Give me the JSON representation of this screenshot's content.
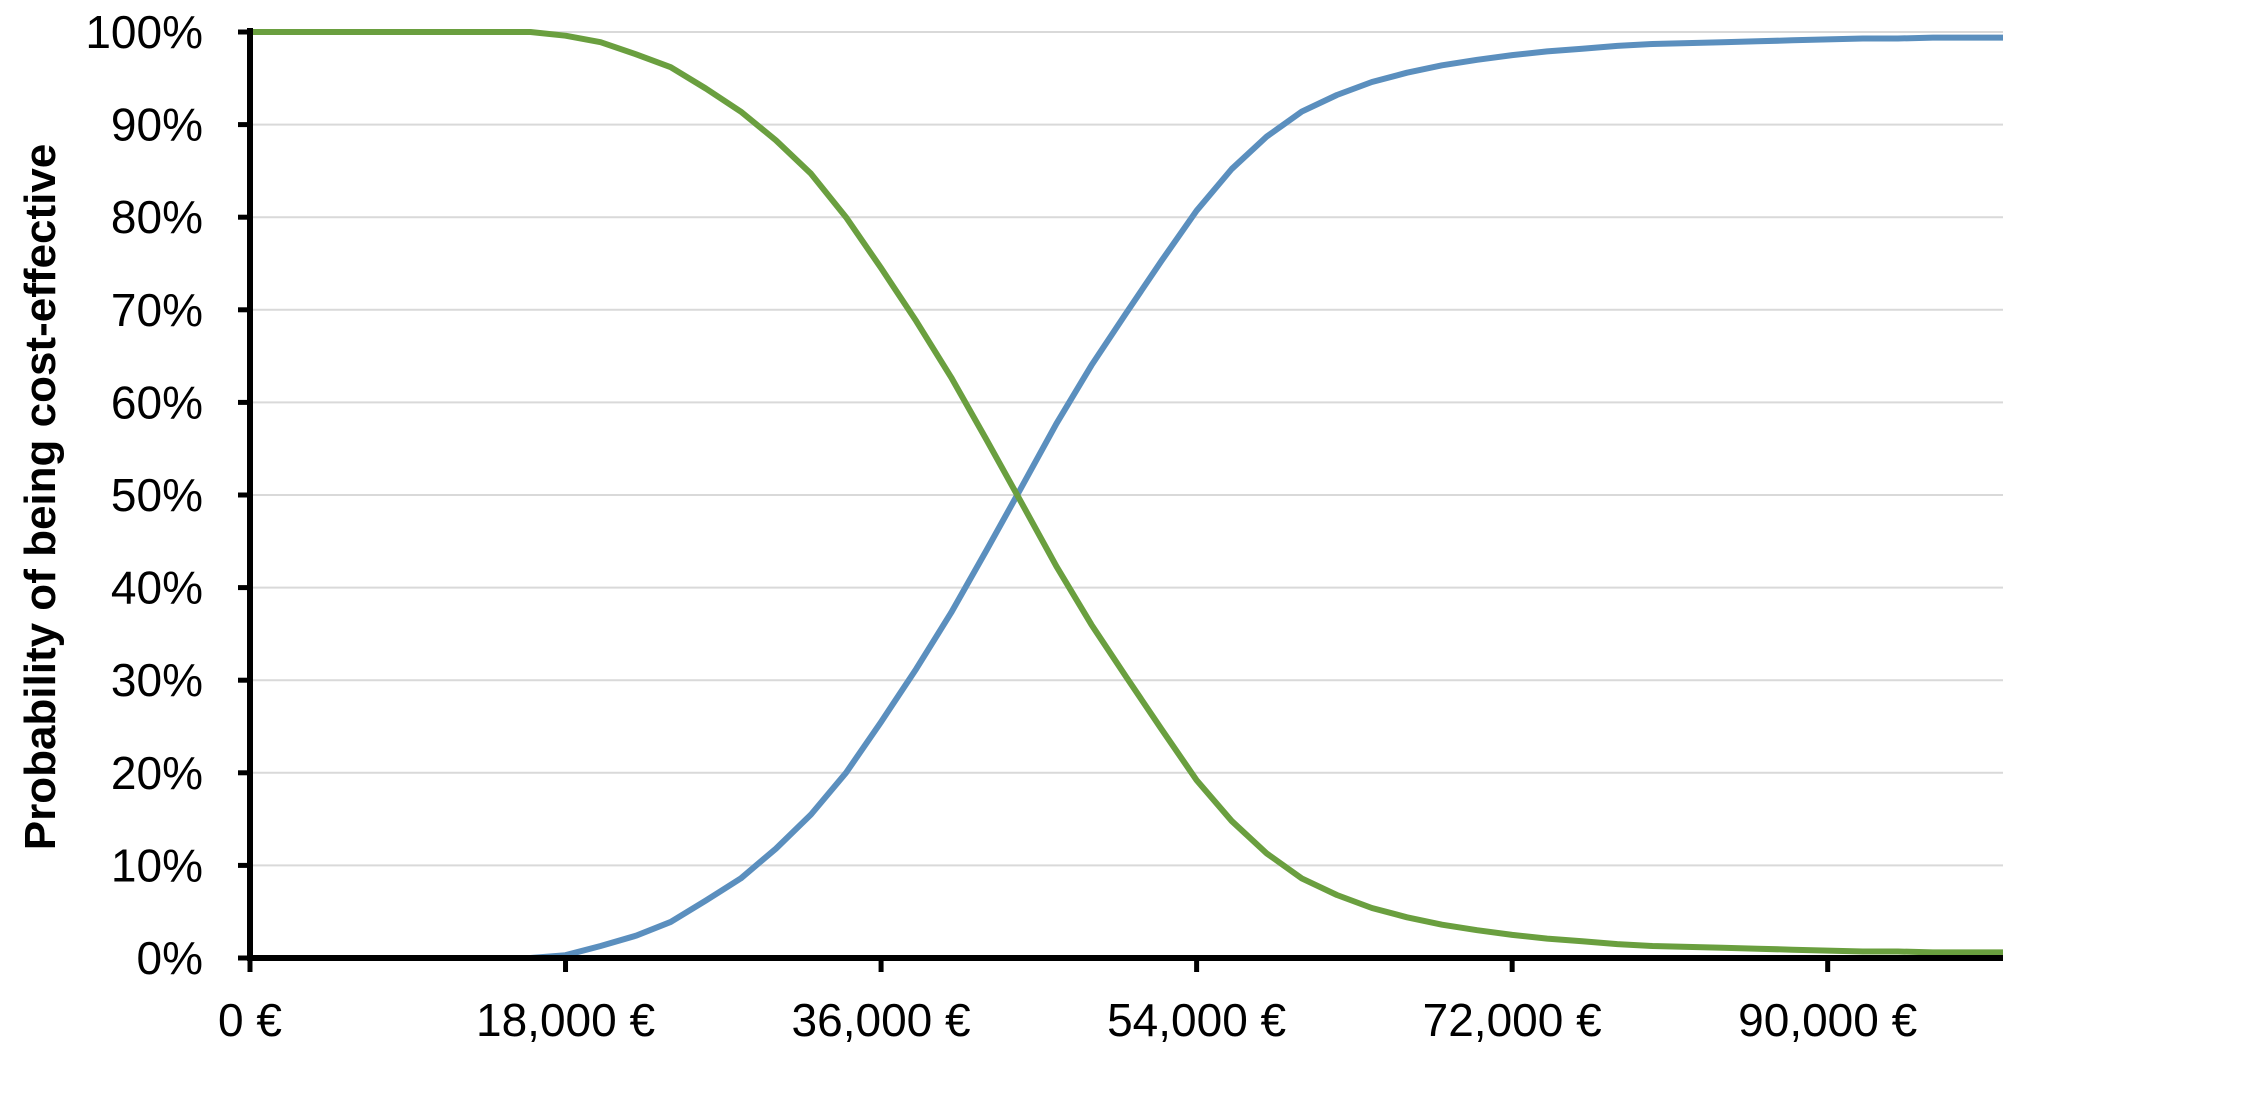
{
  "chart_data": {
    "type": "line",
    "title": "",
    "xlabel": "",
    "ylabel": "Probability of being cost-effective",
    "xlim": [
      0,
      100000
    ],
    "ylim": [
      0,
      100
    ],
    "x_ticks": [
      0,
      18000,
      36000,
      54000,
      72000,
      90000
    ],
    "x_tick_labels": [
      "0 €",
      "18,000 €",
      "36,000 €",
      "54,000 €",
      "72,000 €",
      "90,000 €"
    ],
    "y_ticks": [
      0,
      10,
      20,
      30,
      40,
      50,
      60,
      70,
      80,
      90,
      100
    ],
    "y_tick_labels": [
      "0%",
      "10%",
      "20%",
      "30%",
      "40%",
      "50%",
      "60%",
      "70%",
      "80%",
      "90%",
      "100%"
    ],
    "grid": "horizontal",
    "legend": "none",
    "x": [
      0,
      2000,
      4000,
      6000,
      8000,
      10000,
      12000,
      14000,
      16000,
      18000,
      20000,
      22000,
      24000,
      26000,
      28000,
      30000,
      32000,
      34000,
      36000,
      38000,
      40000,
      42000,
      44000,
      46000,
      48000,
      50000,
      52000,
      54000,
      56000,
      58000,
      60000,
      62000,
      64000,
      66000,
      68000,
      70000,
      72000,
      74000,
      76000,
      78000,
      80000,
      82000,
      84000,
      86000,
      88000,
      90000,
      92000,
      94000,
      96000,
      98000,
      100000
    ],
    "series": [
      {
        "color": "#5b8fbe",
        "values": [
          0,
          0,
          0,
          0,
          0,
          0,
          0,
          0,
          0,
          0.3,
          1.3,
          2.4,
          3.9,
          6.2,
          8.6,
          11.8,
          15.5,
          20,
          25.5,
          31.2,
          37.3,
          44,
          50.8,
          57.7,
          64,
          69.7,
          75.3,
          80.7,
          85.2,
          88.7,
          91.4,
          93.2,
          94.6,
          95.6,
          96.4,
          97,
          97.5,
          97.9,
          98.2,
          98.5,
          98.7,
          98.8,
          98.9,
          99,
          99.1,
          99.2,
          99.3,
          99.3,
          99.4,
          99.4,
          99.4
        ]
      },
      {
        "color": "#6a9f3f",
        "values": [
          100,
          100,
          100,
          100,
          100,
          100,
          100,
          100,
          100,
          99.6,
          98.9,
          97.6,
          96.2,
          93.9,
          91.4,
          88.3,
          84.7,
          80,
          74.5,
          68.8,
          62.7,
          56,
          49.2,
          42.3,
          36,
          30.3,
          24.7,
          19.2,
          14.8,
          11.3,
          8.6,
          6.8,
          5.4,
          4.4,
          3.6,
          3,
          2.5,
          2.1,
          1.8,
          1.5,
          1.3,
          1.2,
          1.1,
          1,
          0.9,
          0.8,
          0.7,
          0.7,
          0.6,
          0.6,
          0.6
        ]
      }
    ]
  }
}
